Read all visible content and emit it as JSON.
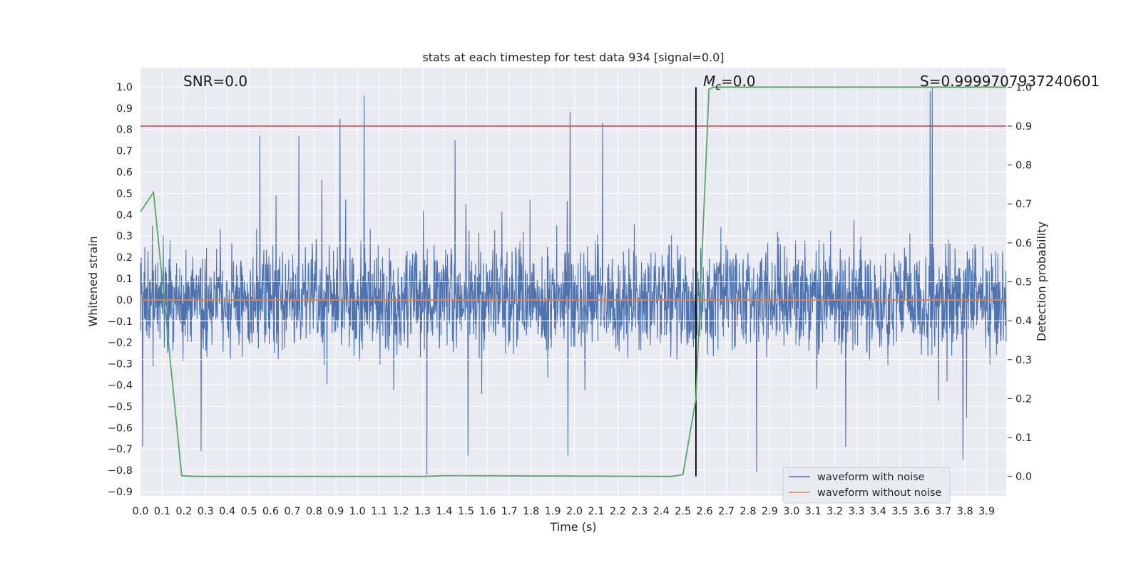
{
  "chart_data": {
    "type": "line",
    "title": "stats at each timestep for test data 934 [signal=0.0]",
    "xlabel": "Time (s)",
    "ylabel": "Whitened strain",
    "y2label": "Detection probability",
    "xlim": [
      0.0,
      3.99
    ],
    "ylim": [
      -0.92,
      1.09
    ],
    "y2lim": [
      -0.05,
      1.05
    ],
    "xticks": [
      "0.0",
      "0.1",
      "0.2",
      "0.3",
      "0.4",
      "0.5",
      "0.6",
      "0.7",
      "0.8",
      "0.9",
      "1.0",
      "1.1",
      "1.2",
      "1.3",
      "1.4",
      "1.5",
      "1.6",
      "1.7",
      "1.8",
      "1.9",
      "2.0",
      "2.1",
      "2.2",
      "2.3",
      "2.4",
      "2.5",
      "2.6",
      "2.7",
      "2.8",
      "2.9",
      "3.0",
      "3.1",
      "3.2",
      "3.3",
      "3.4",
      "3.5",
      "3.6",
      "3.7",
      "3.8",
      "3.9"
    ],
    "yticks": [
      "1.0",
      "0.9",
      "0.8",
      "0.7",
      "0.6",
      "0.5",
      "0.4",
      "0.3",
      "0.2",
      "0.1",
      "0.0",
      "−0.1",
      "−0.2",
      "−0.3",
      "−0.4",
      "−0.5",
      "−0.6",
      "−0.7",
      "−0.8",
      "−0.9"
    ],
    "y2ticks": [
      "1.0",
      "0.9",
      "0.8",
      "0.7",
      "0.6",
      "0.5",
      "0.4",
      "0.3",
      "0.2",
      "0.1",
      "0.0"
    ],
    "grid": true,
    "legend_position": "lower-right",
    "annotations": {
      "snr": "SNR=0.0",
      "mc_symbol": "M",
      "mc_sub": "c",
      "mc_value": "=0.0",
      "s_text": "S=0.9999707937240601"
    },
    "series": [
      {
        "name": "waveform with noise",
        "axis": "left",
        "color": "#4c72b0",
        "style": "noise",
        "spikes": [
          {
            "x": 0.92,
            "y": 0.85
          },
          {
            "x": 1.03,
            "y": 0.96
          },
          {
            "x": 1.98,
            "y": 0.88
          },
          {
            "x": 2.13,
            "y": 0.83
          },
          {
            "x": 3.64,
            "y": 0.98
          },
          {
            "x": 3.65,
            "y": 1.0
          },
          {
            "x": 0.55,
            "y": 0.77
          },
          {
            "x": 0.73,
            "y": 0.77
          },
          {
            "x": 1.45,
            "y": 0.75
          },
          {
            "x": 1.32,
            "y": -0.82
          },
          {
            "x": 2.84,
            "y": -0.81
          },
          {
            "x": 3.79,
            "y": -0.75
          },
          {
            "x": 0.01,
            "y": -0.69
          },
          {
            "x": 0.28,
            "y": -0.71
          },
          {
            "x": 1.97,
            "y": -0.73
          },
          {
            "x": 3.25,
            "y": -0.69
          },
          {
            "x": 1.51,
            "y": -0.73
          }
        ]
      },
      {
        "name": "waveform without noise",
        "axis": "left",
        "color": "#dd8452",
        "x": [
          0.0,
          3.99
        ],
        "y": [
          0.0,
          0.0
        ]
      },
      {
        "name": "",
        "axis": "right",
        "color": "#55a868",
        "x": [
          0.0,
          0.06,
          0.19,
          0.25,
          1.3,
          1.4,
          2.45,
          2.5,
          2.56,
          2.62,
          2.64,
          3.99
        ],
        "y": [
          0.68,
          0.73,
          0.002,
          0.0,
          0.0,
          0.002,
          0.0,
          0.005,
          0.2,
          0.995,
          1.0,
          1.0
        ]
      }
    ],
    "threshold": {
      "axis": "right",
      "y": 0.9,
      "color": "#c44e52"
    },
    "vline": {
      "x": 2.56,
      "y2_from": 0.0,
      "y2_to": 1.0,
      "color": "#000000"
    }
  }
}
